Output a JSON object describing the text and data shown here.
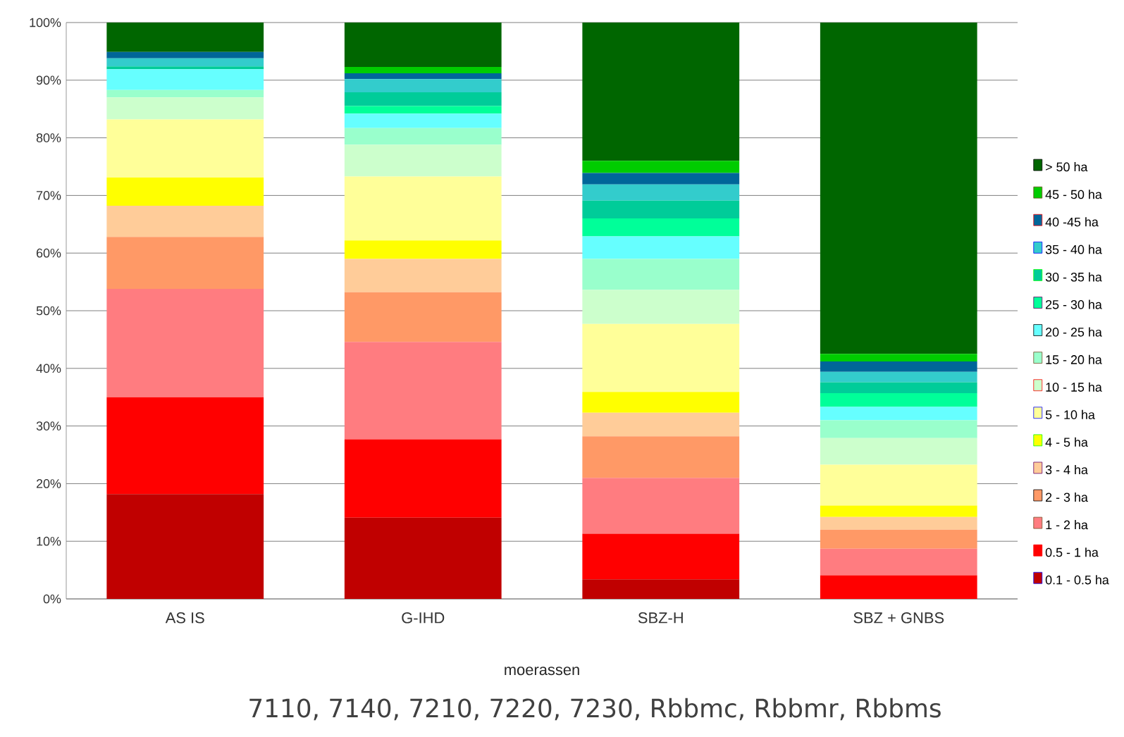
{
  "chart_data": {
    "type": "bar",
    "stacked": true,
    "categories": [
      "AS IS",
      "G-IHD",
      "SBZ-H",
      "SBZ + GNBS"
    ],
    "xlabel": "moerassen",
    "annotations": [
      "7110, 7140, 7210, 7220, 7230, Rbbmc, Rbbmr, Rbbms"
    ],
    "ylim": [
      0,
      100
    ],
    "yticks": [
      {
        "value": 0,
        "label": "0%"
      },
      {
        "value": 10,
        "label": "10%"
      },
      {
        "value": 20,
        "label": "20%"
      },
      {
        "value": 30,
        "label": "30%"
      },
      {
        "value": 40,
        "label": "40%"
      },
      {
        "value": 50,
        "label": "50%"
      },
      {
        "value": 60,
        "label": "60%"
      },
      {
        "value": 70,
        "label": "70%"
      },
      {
        "value": 80,
        "label": "80%"
      },
      {
        "value": 90,
        "label": "90%"
      },
      {
        "value": 100,
        "label": "100%"
      }
    ],
    "grid": "y",
    "legend": "right",
    "series": [
      {
        "name": "0.1 -  0.5 ha",
        "color": "#c00000",
        "values": [
          18.2,
          14.1,
          3.4,
          0
        ]
      },
      {
        "name": "0.5 - 1 ha",
        "color": "#ff0000",
        "values": [
          16.8,
          13.6,
          7.9,
          4.1
        ]
      },
      {
        "name": "1 - 2 ha",
        "color": "#ff7c80",
        "values": [
          18.8,
          16.9,
          9.7,
          4.6
        ]
      },
      {
        "name": "2 - 3 ha",
        "color": "#ff9966",
        "values": [
          9.0,
          8.6,
          7.2,
          3.3
        ]
      },
      {
        "name": "3 - 4 ha",
        "color": "#ffcc99",
        "values": [
          5.4,
          5.8,
          4.1,
          2.2
        ]
      },
      {
        "name": "4 - 5 ha",
        "color": "#ffff00",
        "values": [
          4.9,
          3.2,
          3.6,
          2.0
        ]
      },
      {
        "name": "5 - 10 ha",
        "color": "#ffff99",
        "values": [
          10.1,
          11.1,
          11.8,
          7.1
        ]
      },
      {
        "name": "10 - 15 ha",
        "color": "#ccffcc",
        "values": [
          3.8,
          5.5,
          5.9,
          4.6
        ]
      },
      {
        "name": "15 - 20 ha",
        "color": "#99ffcc",
        "values": [
          1.3,
          2.9,
          5.4,
          3.1
        ]
      },
      {
        "name": "20 - 25 ha",
        "color": "#66ffff",
        "values": [
          3.6,
          2.5,
          3.9,
          2.3
        ]
      },
      {
        "name": "25 - 30 ha",
        "color": "#00ff99",
        "values": [
          0,
          1.3,
          3.1,
          2.4
        ]
      },
      {
        "name": "30 - 35 ha",
        "color": "#00cc99",
        "values": [
          0.5,
          2.4,
          3.1,
          1.9
        ]
      },
      {
        "name": "35 - 40 ha",
        "color": "#33cccc",
        "values": [
          1.4,
          2.3,
          2.8,
          1.8
        ]
      },
      {
        "name": "40 -45 ha",
        "color": "#006699",
        "values": [
          1.1,
          1.0,
          2.0,
          1.8
        ]
      },
      {
        "name": "45 - 50 ha",
        "color": "#00cc00",
        "values": [
          0,
          1.1,
          2.1,
          1.3
        ]
      },
      {
        "name": "> 50 ha",
        "color": "#006600",
        "values": [
          5.1,
          7.7,
          24.0,
          57.5
        ]
      }
    ]
  }
}
